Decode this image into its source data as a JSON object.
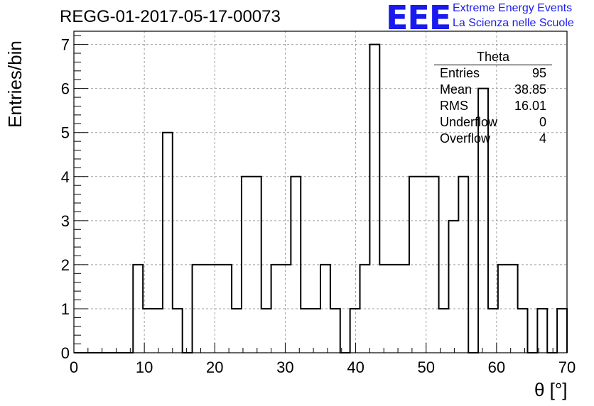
{
  "chart_data": {
    "type": "bar",
    "title": "REGG-01-2017-05-17-00073",
    "xlabel": "θ [°]",
    "ylabel": "Entries/bin",
    "xlim": [
      0,
      70
    ],
    "ylim": [
      0,
      7.3
    ],
    "x_ticks": [
      "0",
      "10",
      "20",
      "30",
      "40",
      "50",
      "60",
      "70"
    ],
    "y_ticks": [
      "0",
      "1",
      "2",
      "3",
      "4",
      "5",
      "6",
      "7"
    ],
    "grid": true,
    "bin_width": 1.4,
    "bin_edges": [
      0,
      1.4,
      2.8,
      4.2,
      5.6,
      7.0,
      8.4,
      9.8,
      11.2,
      12.6,
      14.0,
      15.4,
      16.8,
      18.2,
      19.6,
      21.0,
      22.4,
      23.8,
      25.2,
      26.6,
      28.0,
      29.4,
      30.8,
      32.2,
      33.6,
      35.0,
      36.4,
      37.8,
      39.2,
      40.6,
      42.0,
      43.4,
      44.8,
      46.2,
      47.6,
      49.0,
      50.4,
      51.8,
      53.2,
      54.6,
      56.0,
      57.4,
      58.8,
      60.2,
      61.6,
      63.0,
      64.4,
      65.8,
      67.2,
      68.6,
      70.0
    ],
    "values": [
      0,
      0,
      0,
      0,
      0,
      0,
      2,
      1,
      1,
      5,
      1,
      0,
      2,
      2,
      2,
      2,
      1,
      4,
      4,
      1,
      2,
      2,
      4,
      1,
      1,
      2,
      1,
      0,
      1,
      2,
      7,
      2,
      2,
      2,
      4,
      4,
      4,
      1,
      3,
      4,
      0,
      6,
      1,
      2,
      2,
      1,
      0,
      1,
      0,
      1
    ]
  },
  "stats_box": {
    "name": "Theta",
    "rows": [
      {
        "label": "Entries",
        "value": "95"
      },
      {
        "label": "Mean",
        "value": "38.85"
      },
      {
        "label": "RMS",
        "value": "16.01"
      },
      {
        "label": "Underflow",
        "value": "0"
      },
      {
        "label": "Overflow",
        "value": "4"
      }
    ]
  },
  "logo": {
    "text": "EEE",
    "line1": "Extreme Energy Events",
    "line2": "La Scienza nelle Scuole",
    "color": "#1a1aee"
  }
}
